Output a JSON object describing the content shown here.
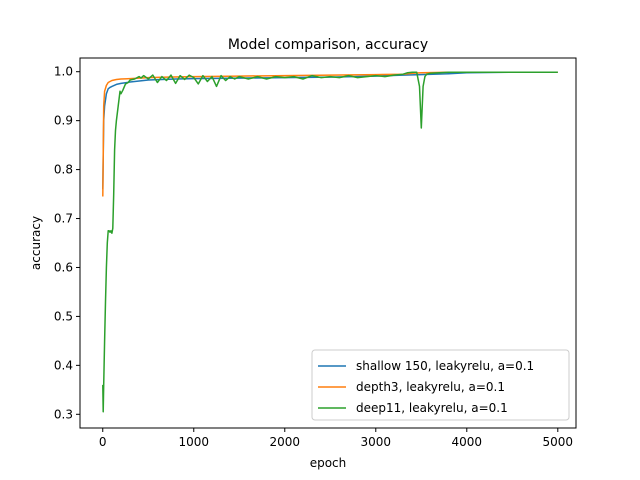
{
  "chart_data": {
    "type": "line",
    "title": "Model comparison, accuracy",
    "xlabel": "epoch",
    "ylabel": "accuracy",
    "xlim": [
      -250,
      5200
    ],
    "ylim": [
      0.272,
      1.028
    ],
    "xticks": [
      0,
      1000,
      2000,
      3000,
      4000,
      5000
    ],
    "yticks": [
      0.3,
      0.4,
      0.5,
      0.6,
      0.7,
      0.8,
      0.9,
      1.0
    ],
    "xtick_labels": [
      "0",
      "1000",
      "2000",
      "3000",
      "4000",
      "5000"
    ],
    "ytick_labels": [
      "0.3",
      "0.4",
      "0.5",
      "0.6",
      "0.7",
      "0.8",
      "0.9",
      "1.0"
    ],
    "grid": false,
    "legend_position": "lower-right",
    "series": [
      {
        "name": "shallow 150, leakyrelu, a=0.1",
        "color": "#1f77b4",
        "x": [
          0,
          10,
          20,
          40,
          60,
          80,
          100,
          150,
          200,
          300,
          500,
          800,
          1000,
          1500,
          2000,
          2500,
          3000,
          3300,
          3500,
          3800,
          4000,
          4500,
          5000
        ],
        "y": [
          0.76,
          0.9,
          0.93,
          0.955,
          0.965,
          0.968,
          0.97,
          0.974,
          0.976,
          0.979,
          0.983,
          0.985,
          0.986,
          0.987,
          0.988,
          0.989,
          0.991,
          0.993,
          0.994,
          0.996,
          0.998,
          0.999,
          0.999
        ]
      },
      {
        "name": "depth3, leakyrelu, a=0.1",
        "color": "#ff7f0e",
        "x": [
          0,
          10,
          20,
          40,
          60,
          80,
          100,
          150,
          200,
          300,
          400,
          500,
          700,
          1000,
          1500,
          2000,
          2500,
          3000,
          3300,
          3400,
          3500,
          3800,
          4000,
          4500,
          5000
        ],
        "y": [
          0.745,
          0.93,
          0.96,
          0.972,
          0.978,
          0.98,
          0.982,
          0.984,
          0.985,
          0.986,
          0.987,
          0.988,
          0.989,
          0.99,
          0.991,
          0.992,
          0.993,
          0.994,
          0.995,
          0.997,
          0.998,
          0.999,
          0.999,
          0.999,
          0.999
        ]
      },
      {
        "name": "deep11, leakyrelu, a=0.1",
        "color": "#2ca02c",
        "x": [
          0,
          5,
          10,
          20,
          30,
          40,
          50,
          60,
          70,
          80,
          90,
          100,
          110,
          120,
          130,
          140,
          150,
          170,
          190,
          200,
          220,
          250,
          280,
          300,
          350,
          400,
          420,
          450,
          500,
          550,
          600,
          650,
          700,
          750,
          800,
          850,
          900,
          950,
          1000,
          1050,
          1100,
          1150,
          1200,
          1250,
          1300,
          1350,
          1400,
          1450,
          1500,
          1600,
          1700,
          1800,
          1900,
          2000,
          2100,
          2200,
          2300,
          2400,
          2500,
          2600,
          2700,
          2800,
          2900,
          3000,
          3100,
          3200,
          3300,
          3350,
          3400,
          3450,
          3480,
          3500,
          3520,
          3540,
          3560,
          3600,
          3700,
          3800,
          3900,
          4000,
          4200,
          4500,
          4800,
          5000
        ],
        "y": [
          0.36,
          0.305,
          0.36,
          0.45,
          0.53,
          0.6,
          0.65,
          0.675,
          0.675,
          0.672,
          0.675,
          0.67,
          0.68,
          0.75,
          0.84,
          0.88,
          0.9,
          0.93,
          0.96,
          0.955,
          0.962,
          0.975,
          0.978,
          0.983,
          0.985,
          0.99,
          0.987,
          0.992,
          0.985,
          0.993,
          0.978,
          0.99,
          0.982,
          0.993,
          0.976,
          0.992,
          0.984,
          0.993,
          0.988,
          0.975,
          0.992,
          0.98,
          0.99,
          0.97,
          0.992,
          0.982,
          0.99,
          0.985,
          0.99,
          0.985,
          0.99,
          0.985,
          0.99,
          0.988,
          0.99,
          0.985,
          0.992,
          0.988,
          0.99,
          0.988,
          0.992,
          0.988,
          0.99,
          0.992,
          0.99,
          0.993,
          0.995,
          0.998,
          0.999,
          0.999,
          0.97,
          0.885,
          0.97,
          0.99,
          0.995,
          0.997,
          0.998,
          0.999,
          0.999,
          0.999,
          0.999,
          0.999,
          0.999,
          0.999
        ]
      }
    ]
  }
}
